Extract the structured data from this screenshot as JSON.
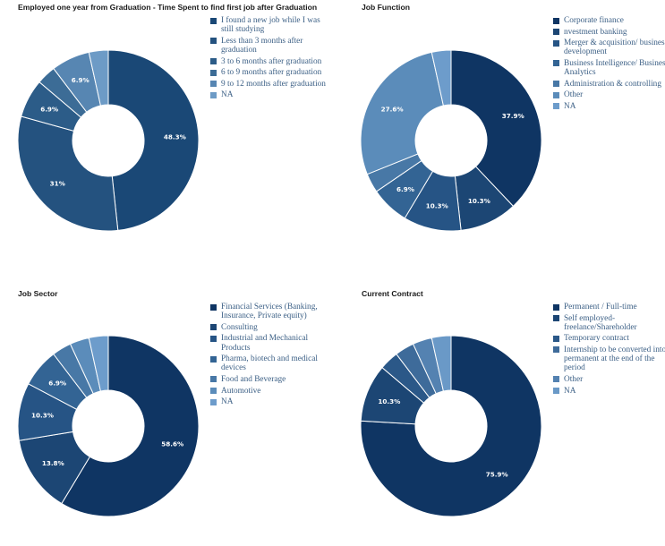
{
  "chart_data": [
    {
      "type": "pie",
      "title": "Employed one year from Graduation - Time Spent to find first job after Graduation",
      "categories": [
        "I found a new job while I was still studying",
        "Less than 3 months after graduation",
        "3 to 6 months after graduation",
        "6 to 9 months after graduation",
        "9 to 12 months after graduation",
        "NA"
      ],
      "values": [
        48.3,
        31,
        6.9,
        3.45,
        6.9,
        3.45
      ],
      "data_labels": [
        "48.3%",
        "31%",
        "6.9%",
        "",
        "6.9%",
        ""
      ],
      "colors": [
        "#1a4876",
        "#24527f",
        "#2c5c88",
        "#3c6c96",
        "#5786b2",
        "#6d9bc6"
      ],
      "legend_position": "right"
    },
    {
      "type": "pie",
      "title": "Job Function",
      "categories": [
        "Corporate finance",
        "nvestment banking",
        "Merger & acquisition/ business development",
        "Business Intelligence/ Business Analytics",
        "Administration & controlling",
        "Other",
        "NA"
      ],
      "values": [
        37.9,
        10.3,
        10.3,
        6.9,
        3.45,
        27.6,
        3.45
      ],
      "data_labels": [
        "37.9%",
        "10.3%",
        "10.3%",
        "6.9%",
        "",
        "27.6%",
        ""
      ],
      "colors": [
        "#0f3563",
        "#1c4674",
        "#265485",
        "#336494",
        "#4878a6",
        "#5b8cba",
        "#6d9ccb"
      ],
      "legend_position": "right"
    },
    {
      "type": "pie",
      "title": "Job Sector",
      "categories": [
        "Financial Services (Banking, Insurance, Private equity)",
        "Consulting",
        "Industrial and Mechanical Products",
        "Pharma, biotech and medical devices",
        "Food and Beverage",
        "Automotive",
        "NA"
      ],
      "values": [
        58.6,
        13.8,
        10.3,
        6.9,
        3.45,
        3.45,
        3.45
      ],
      "data_labels": [
        "58.6%",
        "13.8%",
        "10.3%",
        "6.9%",
        "",
        "",
        ""
      ],
      "colors": [
        "#0f3563",
        "#1c4674",
        "#265485",
        "#336494",
        "#4878a6",
        "#5b8cba",
        "#6d9ccb"
      ],
      "legend_position": "right"
    },
    {
      "type": "pie",
      "title": "Current Contract",
      "categories": [
        "Permanent / Full-time",
        "Self employed- freelance/Shareholder",
        "Temporary contract",
        "Internship to be converted into permanent at the end of the period",
        "Other",
        "NA"
      ],
      "values": [
        75.9,
        10.3,
        3.45,
        3.45,
        3.45,
        3.45
      ],
      "data_labels": [
        "75.9%",
        "10.3%",
        "",
        "",
        "",
        ""
      ],
      "colors": [
        "#0f3563",
        "#1c4674",
        "#2b5888",
        "#3e6b9a",
        "#5482b1",
        "#6a99c7"
      ],
      "legend_position": "right"
    }
  ]
}
